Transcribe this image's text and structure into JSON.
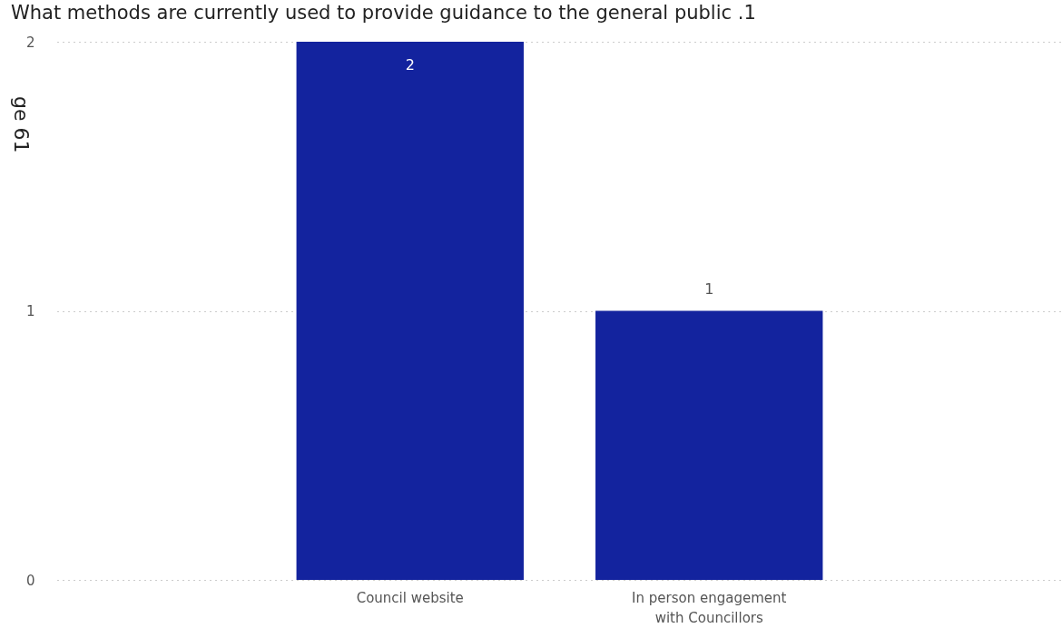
{
  "chart_data": {
    "type": "bar",
    "title": "What methods are currently used to provide guidance to the general public .1",
    "categories": [
      "Council website",
      "In person engagement\nwith Councillors"
    ],
    "values": [
      2,
      1
    ],
    "color": "#13239e",
    "ylim": [
      0,
      2
    ],
    "yticks": [
      0,
      1,
      2
    ],
    "grid": "y",
    "data_labels": true,
    "annotations": [
      "ge 61"
    ]
  }
}
